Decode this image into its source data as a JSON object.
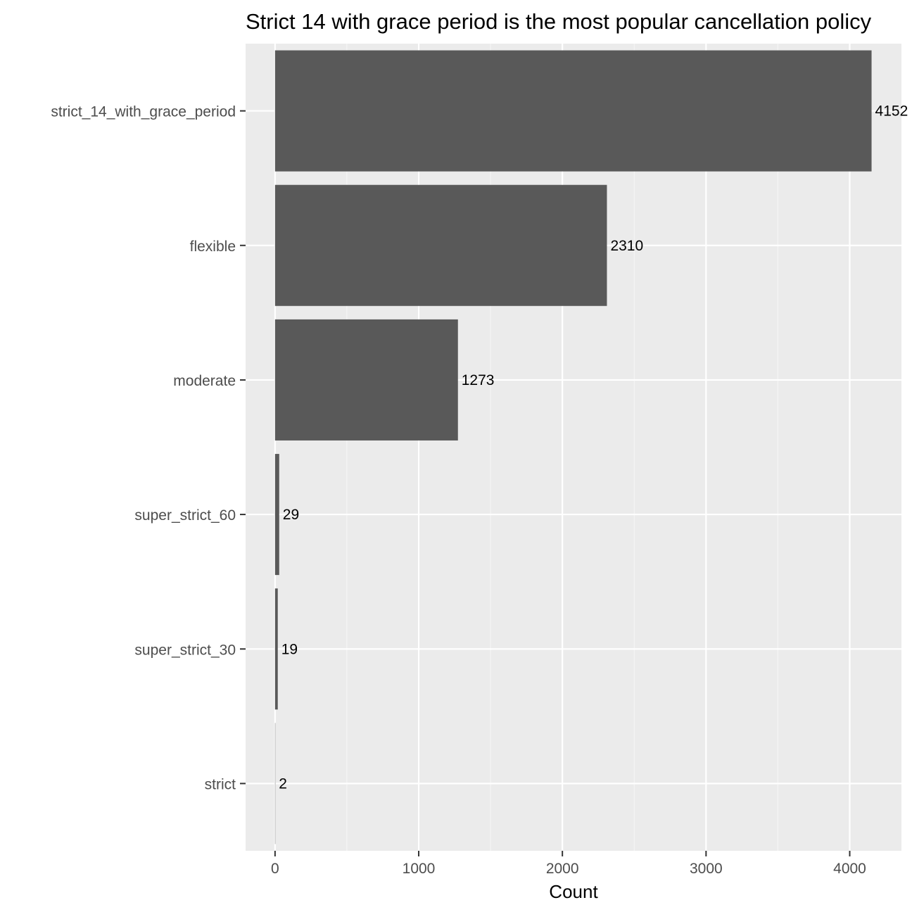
{
  "chart_data": {
    "type": "bar",
    "orientation": "horizontal",
    "title": "Strict 14 with grace period is the most popular cancellation policy",
    "xlabel": "Count",
    "ylabel": "",
    "categories": [
      "strict_14_with_grace_period",
      "flexible",
      "moderate",
      "super_strict_60",
      "super_strict_30",
      "strict"
    ],
    "values": [
      4152,
      2310,
      1273,
      29,
      19,
      2
    ],
    "data_labels": [
      "4152",
      "2310",
      "1273",
      "29",
      "19",
      "2"
    ],
    "xlim": [
      -205,
      4360
    ],
    "x_ticks": [
      0,
      1000,
      2000,
      3000,
      4000
    ],
    "x_tick_labels": [
      "0",
      "1000",
      "2000",
      "3000",
      "4000"
    ],
    "grid": true,
    "legend": "none",
    "colors": {
      "bar": "#595959",
      "panel": "#ebebeb",
      "grid_major": "#ffffff",
      "grid_minor": "#f5f5f5",
      "tick": "#333333"
    }
  }
}
